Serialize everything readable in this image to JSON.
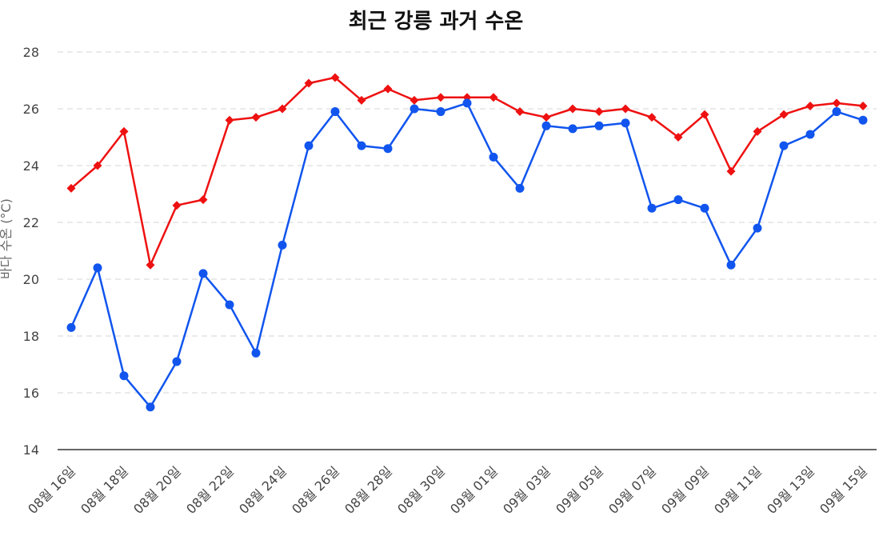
{
  "chart_data": {
    "type": "line",
    "title": "최근 강릉 과거 수온",
    "xlabel": "",
    "ylabel": "바다 수온 (°C)",
    "ylim": [
      14,
      28
    ],
    "yticks": [
      14,
      16,
      18,
      20,
      22,
      24,
      26,
      28
    ],
    "grid": true,
    "categories": [
      "08월 16일",
      "08월 17일",
      "08월 18일",
      "08월 19일",
      "08월 20일",
      "08월 21일",
      "08월 22일",
      "08월 23일",
      "08월 24일",
      "08월 25일",
      "08월 26일",
      "08월 27일",
      "08월 28일",
      "08월 29일",
      "08월 30일",
      "08월 31일",
      "09월 01일",
      "09월 02일",
      "09월 03일",
      "09월 04일",
      "09월 05일",
      "09월 06일",
      "09월 07일",
      "09월 08일",
      "09월 09일",
      "09월 10일",
      "09월 11일",
      "09월 12일",
      "09월 13일",
      "09월 14일",
      "09월 15일"
    ],
    "xticks": [
      "08월 16일",
      "08월 18일",
      "08월 20일",
      "08월 22일",
      "08월 24일",
      "08월 26일",
      "08월 28일",
      "08월 30일",
      "09월 01일",
      "09월 03일",
      "09월 05일",
      "09월 07일",
      "09월 09일",
      "09월 11일",
      "09월 13일",
      "09월 15일"
    ],
    "series": [
      {
        "color": "#ee1111",
        "marker": "diamond",
        "values": [
          23.2,
          24.0,
          25.2,
          20.5,
          22.6,
          22.8,
          25.6,
          25.7,
          26.0,
          26.9,
          27.1,
          26.3,
          26.7,
          26.3,
          26.4,
          26.4,
          26.4,
          25.9,
          25.7,
          26.0,
          25.9,
          26.0,
          25.7,
          25.0,
          25.8,
          23.8,
          25.2,
          25.8,
          26.1,
          26.2,
          26.1
        ]
      },
      {
        "color": "#1155ee",
        "marker": "circle",
        "values": [
          18.3,
          20.4,
          16.6,
          15.5,
          17.1,
          20.2,
          19.1,
          17.4,
          21.2,
          24.7,
          25.9,
          24.7,
          24.6,
          26.0,
          25.9,
          26.2,
          24.3,
          23.2,
          25.4,
          25.3,
          25.4,
          25.5,
          22.5,
          22.8,
          22.5,
          20.5,
          21.8,
          24.7,
          25.1,
          25.9,
          25.6
        ]
      }
    ]
  }
}
